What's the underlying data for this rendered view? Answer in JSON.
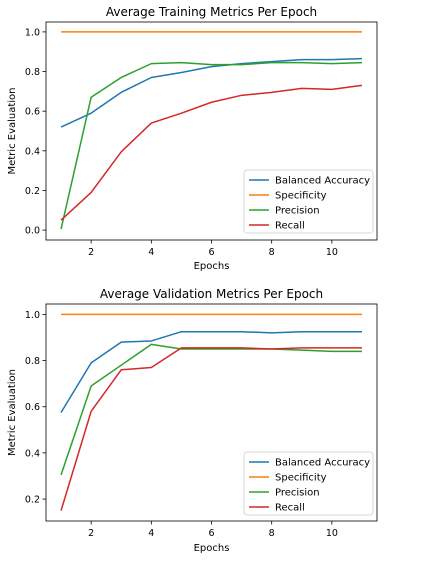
{
  "chart_data": [
    {
      "type": "line",
      "title": "Average Training Metrics Per Epoch",
      "xlabel": "Epochs",
      "ylabel": "Metric Evaluation",
      "xlim": [
        0.5,
        11.5
      ],
      "ylim": [
        -0.05,
        1.05
      ],
      "xticks": [
        2,
        4,
        6,
        8,
        10
      ],
      "yticks": [
        0.0,
        0.2,
        0.4,
        0.6,
        0.8,
        1.0
      ],
      "xtick_labels": [
        "2",
        "4",
        "6",
        "8",
        "10"
      ],
      "ytick_labels": [
        "0.0",
        "0.2",
        "0.4",
        "0.6",
        "0.8",
        "1.0"
      ],
      "grid": false,
      "legend_position": "lower-right",
      "x": [
        1,
        2,
        3,
        4,
        5,
        6,
        7,
        8,
        9,
        10,
        11
      ],
      "series": [
        {
          "name": "Balanced Accuracy",
          "color": "#1f77b4",
          "values": [
            0.52,
            0.59,
            0.695,
            0.77,
            0.795,
            0.825,
            0.84,
            0.85,
            0.86,
            0.86,
            0.865
          ]
        },
        {
          "name": "Specificity",
          "color": "#ff7f0e",
          "values": [
            1.0,
            1.0,
            1.0,
            1.0,
            1.0,
            1.0,
            1.0,
            1.0,
            1.0,
            1.0,
            1.0
          ]
        },
        {
          "name": "Precision",
          "color": "#2ca02c",
          "values": [
            0.005,
            0.67,
            0.77,
            0.84,
            0.845,
            0.835,
            0.835,
            0.845,
            0.845,
            0.84,
            0.845
          ]
        },
        {
          "name": "Recall",
          "color": "#d62728",
          "values": [
            0.05,
            0.19,
            0.395,
            0.54,
            0.59,
            0.645,
            0.68,
            0.695,
            0.715,
            0.71,
            0.73
          ]
        }
      ]
    },
    {
      "type": "line",
      "title": "Average Validation Metrics Per Epoch",
      "xlabel": "Epochs",
      "ylabel": "Metric Evaluation",
      "xlim": [
        0.5,
        11.5
      ],
      "ylim": [
        0.105,
        1.045
      ],
      "xticks": [
        2,
        4,
        6,
        8,
        10
      ],
      "yticks": [
        0.2,
        0.4,
        0.6,
        0.8,
        1.0
      ],
      "xtick_labels": [
        "2",
        "4",
        "6",
        "8",
        "10"
      ],
      "ytick_labels": [
        "0.2",
        "0.4",
        "0.6",
        "0.8",
        "1.0"
      ],
      "grid": false,
      "legend_position": "lower-right",
      "x": [
        1,
        2,
        3,
        4,
        5,
        6,
        7,
        8,
        9,
        10,
        11
      ],
      "series": [
        {
          "name": "Balanced Accuracy",
          "color": "#1f77b4",
          "values": [
            0.575,
            0.79,
            0.88,
            0.885,
            0.925,
            0.925,
            0.925,
            0.92,
            0.925,
            0.925,
            0.925
          ]
        },
        {
          "name": "Specificity",
          "color": "#ff7f0e",
          "values": [
            1.0,
            1.0,
            1.0,
            1.0,
            1.0,
            1.0,
            1.0,
            1.0,
            1.0,
            1.0,
            1.0
          ]
        },
        {
          "name": "Precision",
          "color": "#2ca02c",
          "values": [
            0.305,
            0.69,
            0.78,
            0.87,
            0.85,
            0.85,
            0.85,
            0.85,
            0.845,
            0.84,
            0.84
          ]
        },
        {
          "name": "Recall",
          "color": "#d62728",
          "values": [
            0.15,
            0.58,
            0.76,
            0.77,
            0.855,
            0.855,
            0.855,
            0.85,
            0.855,
            0.855,
            0.855
          ]
        }
      ]
    }
  ]
}
